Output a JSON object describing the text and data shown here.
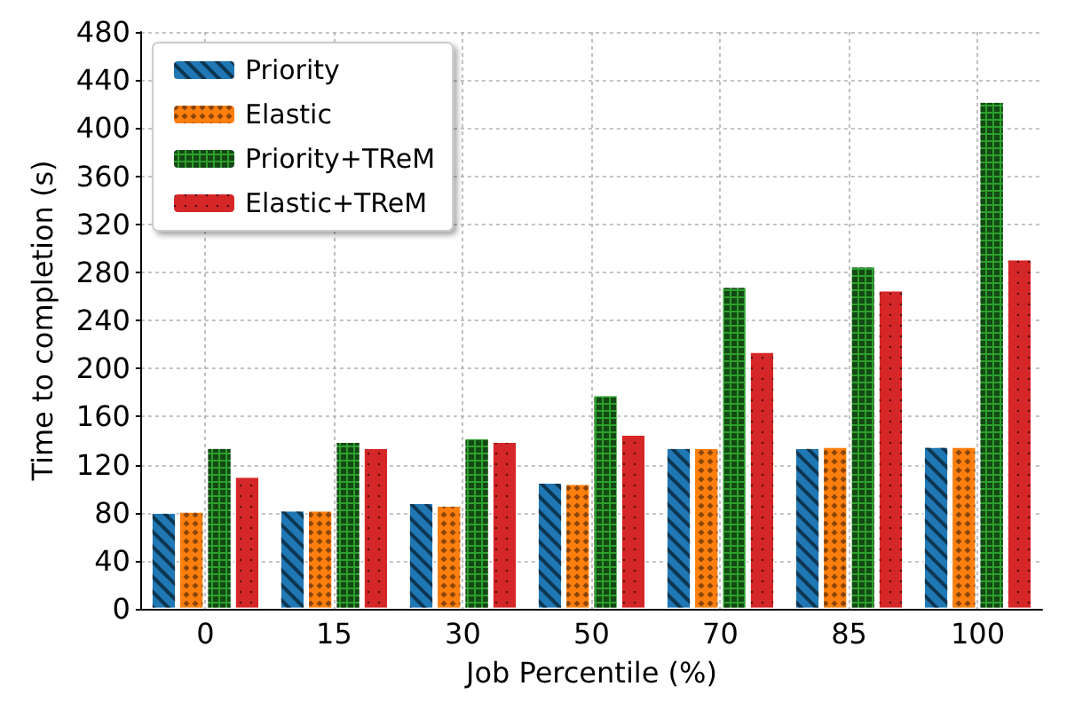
{
  "chart_data": {
    "type": "bar",
    "xlabel": "Job Percentile (%)",
    "ylabel": "Time to completion (s)",
    "categories": [
      "0",
      "15",
      "30",
      "50",
      "70",
      "85",
      "100"
    ],
    "series": [
      {
        "name": "Priority",
        "color": "#1f77b4",
        "values": [
          80,
          82,
          88,
          105,
          134,
          134,
          135
        ]
      },
      {
        "name": "Elastic",
        "color": "#ff7f0e",
        "values": [
          81,
          82,
          86,
          104,
          134,
          135,
          135
        ]
      },
      {
        "name": "Priority+TReM",
        "color": "#2ca02c",
        "values": [
          134,
          139,
          142,
          178,
          268,
          285,
          422
        ]
      },
      {
        "name": "Elastic+TReM",
        "color": "#d62728",
        "values": [
          110,
          134,
          139,
          145,
          214,
          265,
          291
        ]
      }
    ],
    "ylim": [
      0,
      480
    ],
    "yticks": [
      0,
      40,
      80,
      120,
      160,
      200,
      240,
      280,
      320,
      360,
      400,
      440,
      480
    ],
    "grid": true,
    "legend": "top left"
  }
}
